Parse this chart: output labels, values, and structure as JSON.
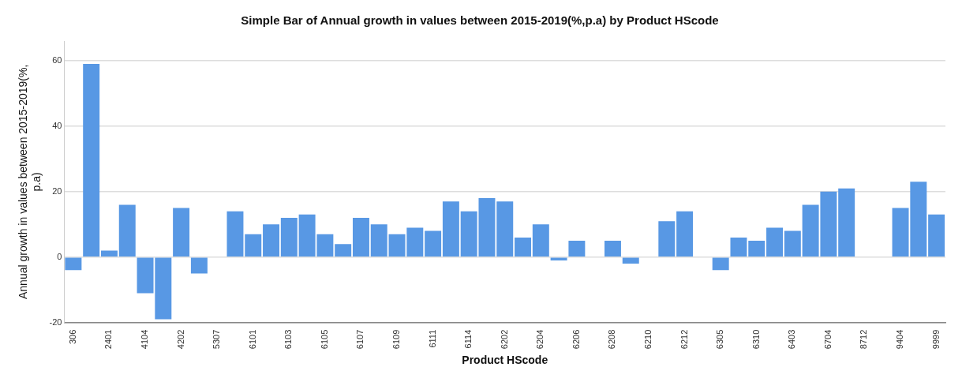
{
  "chart_data": {
    "type": "bar",
    "title": "Simple Bar of Annual growth in values between 2015-2019(%,p.a) by Product HScode",
    "xlabel": "Product HScode",
    "ylabel": "Annual growth in values between 2015-2019(%,p.a)",
    "categories": [
      "306",
      null,
      "2401",
      null,
      "4104",
      null,
      "4202",
      null,
      "5307",
      null,
      "6101",
      null,
      "6103",
      null,
      "6105",
      null,
      "6107",
      null,
      "6109",
      null,
      "6111",
      null,
      "6114",
      null,
      "6202",
      null,
      "6204",
      null,
      "6206",
      null,
      "6208",
      null,
      "6210",
      null,
      "6212",
      null,
      "6305",
      null,
      "6310",
      null,
      "6403",
      null,
      "6704",
      null,
      "8712",
      null,
      "9404",
      null,
      "9999"
    ],
    "values": [
      -4,
      59,
      2,
      16,
      -11,
      -19,
      15,
      -5,
      null,
      14,
      7,
      10,
      12,
      13,
      7,
      4,
      12,
      10,
      7,
      9,
      8,
      17,
      14,
      18,
      17,
      6,
      10,
      -1,
      5,
      null,
      5,
      -2,
      null,
      11,
      14,
      null,
      -4,
      6,
      5,
      9,
      8,
      16,
      20,
      21,
      null,
      null,
      15,
      23,
      13
    ],
    "color": "#5898e4",
    "ylim": [
      -20,
      66
    ],
    "yticks": [
      -20,
      0,
      20,
      40,
      60
    ],
    "grid": "y",
    "legend": false
  }
}
